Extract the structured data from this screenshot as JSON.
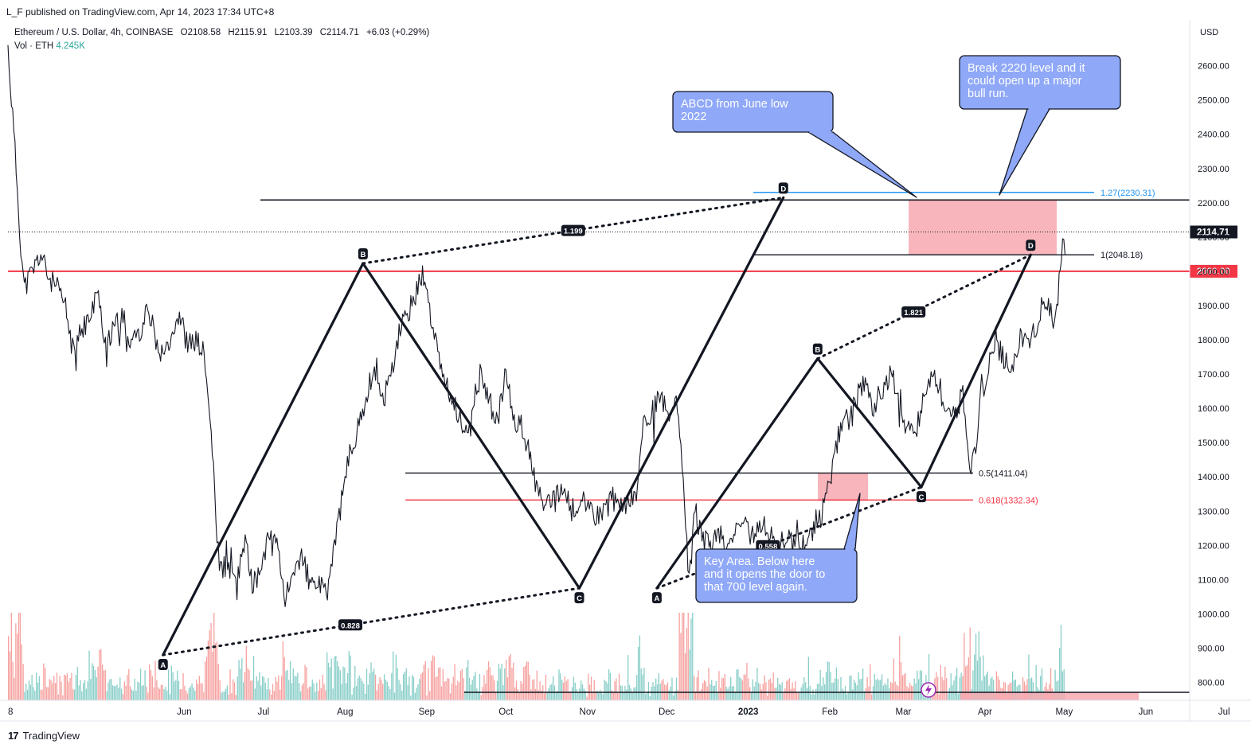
{
  "publisher_line": "L_F published on TradingView.com, Apr 14, 2023 17:34 UTC+8",
  "footer_brand": "TradingView",
  "footer_logo": "17",
  "colors": {
    "accent_red": "#f23645",
    "accent_blue": "#2962ff",
    "fib_blue": "#2196f3",
    "note_blue": "#8fa8f7",
    "zone_pink": "#f7a9b0",
    "bull": "#26a69a",
    "bear": "#ef5350"
  },
  "legend": {
    "symbol": "Ethereum / U.S. Dollar, 4h, COINBASE",
    "open": "O2108.58",
    "high": "H2115.91",
    "low": "L2103.39",
    "close": "C2114.71",
    "change": "+6.03 (+0.29%)",
    "vol_label": "Vol · ETH",
    "vol_value": "4.245K"
  },
  "chart_data": {
    "type": "line",
    "title": "Ethereum / U.S. Dollar, 4h, COINBASE",
    "ylabel": "USD",
    "ylim": [
      740,
      2740
    ],
    "y_ticks": [
      800,
      900,
      1000,
      1100,
      1200,
      1300,
      1400,
      1500,
      1600,
      1700,
      1800,
      1900,
      2000,
      2100,
      2200,
      2300,
      2400,
      2500,
      2600
    ],
    "y_tick_labels": [
      "800.00",
      "900.00",
      "1000.00",
      "1100.00",
      "1200.00",
      "1300.00",
      "1400.00",
      "1500.00",
      "1600.00",
      "1700.00",
      "1800.00",
      "1900.00",
      "2000.00",
      "2100.00",
      "2200.00",
      "2300.00",
      "2400.00",
      "2500.00",
      "2600.00"
    ],
    "x_ticks": [
      {
        "label": "8",
        "t": 0
      },
      {
        "label": "Jun",
        "t": 2.16
      },
      {
        "label": "Jul",
        "t": 3.13
      },
      {
        "label": "Aug",
        "t": 4.13
      },
      {
        "label": "Sep",
        "t": 5.13
      },
      {
        "label": "Oct",
        "t": 6.1
      },
      {
        "label": "Nov",
        "t": 7.1
      },
      {
        "label": "Dec",
        "t": 8.07
      },
      {
        "label": "2023",
        "t": 9.07
      },
      {
        "label": "Feb",
        "t": 10.07
      },
      {
        "label": "Mar",
        "t": 10.97
      },
      {
        "label": "Apr",
        "t": 11.97
      },
      {
        "label": "May",
        "t": 12.94
      },
      {
        "label": "Jun",
        "t": 13.94
      },
      {
        "label": "Jul",
        "t": 14.9
      }
    ],
    "x_unit": "months since mid-May 2022",
    "price_series": [
      [
        0,
        2650
      ],
      [
        0.05,
        2480
      ],
      [
        0.1,
        2300
      ],
      [
        0.15,
        2100
      ],
      [
        0.2,
        1950
      ],
      [
        0.3,
        2000
      ],
      [
        0.4,
        2050
      ],
      [
        0.5,
        1980
      ],
      [
        0.6,
        1950
      ],
      [
        0.7,
        1900
      ],
      [
        0.8,
        1760
      ],
      [
        0.9,
        1830
      ],
      [
        1.0,
        1860
      ],
      [
        1.1,
        1940
      ],
      [
        1.2,
        1780
      ],
      [
        1.3,
        1830
      ],
      [
        1.4,
        1870
      ],
      [
        1.5,
        1800
      ],
      [
        1.6,
        1820
      ],
      [
        1.7,
        1880
      ],
      [
        1.8,
        1800
      ],
      [
        1.9,
        1760
      ],
      [
        2.0,
        1820
      ],
      [
        2.1,
        1880
      ],
      [
        2.2,
        1780
      ],
      [
        2.3,
        1800
      ],
      [
        2.4,
        1760
      ],
      [
        2.5,
        1500
      ],
      [
        2.55,
        1250
      ],
      [
        2.6,
        1130
      ],
      [
        2.7,
        1150
      ],
      [
        2.8,
        1080
      ],
      [
        2.9,
        1220
      ],
      [
        3.0,
        1080
      ],
      [
        3.1,
        1130
      ],
      [
        3.2,
        1250
      ],
      [
        3.3,
        1220
      ],
      [
        3.4,
        1040
      ],
      [
        3.5,
        1100
      ],
      [
        3.6,
        1180
      ],
      [
        3.7,
        1080
      ],
      [
        3.8,
        1090
      ],
      [
        3.9,
        1050
      ],
      [
        4.0,
        1200
      ],
      [
        4.1,
        1350
      ],
      [
        4.2,
        1480
      ],
      [
        4.3,
        1550
      ],
      [
        4.4,
        1650
      ],
      [
        4.5,
        1720
      ],
      [
        4.6,
        1620
      ],
      [
        4.7,
        1700
      ],
      [
        4.8,
        1820
      ],
      [
        4.9,
        1880
      ],
      [
        5.0,
        1930
      ],
      [
        5.05,
        2000
      ],
      [
        5.1,
        1970
      ],
      [
        5.2,
        1850
      ],
      [
        5.3,
        1720
      ],
      [
        5.4,
        1640
      ],
      [
        5.5,
        1600
      ],
      [
        5.6,
        1520
      ],
      [
        5.7,
        1620
      ],
      [
        5.8,
        1700
      ],
      [
        5.9,
        1620
      ],
      [
        6.0,
        1560
      ],
      [
        6.1,
        1700
      ],
      [
        6.2,
        1560
      ],
      [
        6.3,
        1550
      ],
      [
        6.4,
        1450
      ],
      [
        6.5,
        1350
      ],
      [
        6.6,
        1310
      ],
      [
        6.7,
        1330
      ],
      [
        6.8,
        1370
      ],
      [
        6.9,
        1300
      ],
      [
        7.0,
        1320
      ],
      [
        7.1,
        1330
      ],
      [
        7.2,
        1290
      ],
      [
        7.3,
        1290
      ],
      [
        7.4,
        1340
      ],
      [
        7.5,
        1300
      ],
      [
        7.6,
        1330
      ],
      [
        7.7,
        1350
      ],
      [
        7.8,
        1580
      ],
      [
        7.9,
        1590
      ],
      [
        8.0,
        1640
      ],
      [
        8.1,
        1560
      ],
      [
        8.2,
        1620
      ],
      [
        8.3,
        1270
      ],
      [
        8.35,
        1090
      ],
      [
        8.4,
        1300
      ],
      [
        8.5,
        1230
      ],
      [
        8.6,
        1190
      ],
      [
        8.7,
        1250
      ],
      [
        8.8,
        1190
      ],
      [
        8.9,
        1220
      ],
      [
        9.0,
        1280
      ],
      [
        9.1,
        1210
      ],
      [
        9.2,
        1270
      ],
      [
        9.3,
        1250
      ],
      [
        9.4,
        1200
      ],
      [
        9.5,
        1220
      ],
      [
        9.6,
        1210
      ],
      [
        9.7,
        1200
      ],
      [
        9.8,
        1230
      ],
      [
        9.9,
        1250
      ],
      [
        10.0,
        1320
      ],
      [
        10.1,
        1420
      ],
      [
        10.2,
        1550
      ],
      [
        10.3,
        1570
      ],
      [
        10.4,
        1630
      ],
      [
        10.5,
        1680
      ],
      [
        10.6,
        1600
      ],
      [
        10.7,
        1650
      ],
      [
        10.8,
        1700
      ],
      [
        10.9,
        1660
      ],
      [
        11.0,
        1550
      ],
      [
        11.1,
        1520
      ],
      [
        11.2,
        1600
      ],
      [
        11.3,
        1700
      ],
      [
        11.4,
        1670
      ],
      [
        11.5,
        1560
      ],
      [
        11.6,
        1590
      ],
      [
        11.7,
        1640
      ],
      [
        11.75,
        1530
      ],
      [
        11.8,
        1420
      ],
      [
        11.85,
        1470
      ],
      [
        11.9,
        1600
      ],
      [
        12.0,
        1720
      ],
      [
        12.1,
        1790
      ],
      [
        12.2,
        1750
      ],
      [
        12.3,
        1720
      ],
      [
        12.4,
        1800
      ],
      [
        12.5,
        1780
      ],
      [
        12.6,
        1840
      ],
      [
        12.7,
        1920
      ],
      [
        12.8,
        1870
      ],
      [
        12.85,
        1910
      ],
      [
        12.9,
        2000
      ],
      [
        12.93,
        2100
      ],
      [
        12.95,
        2115
      ]
    ],
    "volume_description": "4h volume bars along the bottom of the pane, green = up bar, red = down bar",
    "harmonic_pattern_1": {
      "points": [
        {
          "label": "A",
          "t": 1.9,
          "price": 880
        },
        {
          "label": "B",
          "t": 4.35,
          "price": 2023
        },
        {
          "label": "C",
          "t": 7.0,
          "price": 1075
        },
        {
          "label": "D",
          "t": 9.5,
          "price": 2215
        }
      ],
      "ratios": [
        {
          "label": "0.828",
          "from": "A",
          "to": "C"
        },
        {
          "label": "1.199",
          "from": "B",
          "to": "D"
        }
      ]
    },
    "harmonic_pattern_2": {
      "points": [
        {
          "label": "A",
          "t": 7.95,
          "price": 1075
        },
        {
          "label": "B",
          "t": 9.92,
          "price": 1745
        },
        {
          "label": "C",
          "t": 11.19,
          "price": 1370
        },
        {
          "label": "D",
          "t": 12.53,
          "price": 2048
        }
      ],
      "ratios": [
        {
          "label": "0.558",
          "from": "A",
          "to": "C"
        },
        {
          "label": "1.821",
          "from": "B",
          "to": "D"
        }
      ]
    },
    "levels": [
      {
        "price": 2208,
        "label": "",
        "color": "#131722"
      },
      {
        "price": 2230.31,
        "label": "1.27(2230.31)",
        "color": "#2196f3"
      },
      {
        "price": 2048.18,
        "label": "1(2048.18)",
        "color": "#131722"
      },
      {
        "price": 2000,
        "label": "2000.00",
        "color": "#f23645"
      },
      {
        "price": 1411.04,
        "label": "0.5(1411.04)",
        "color": "#131722"
      },
      {
        "price": 1332.34,
        "label": "0.618(1332.34)",
        "color": "#f23645"
      }
    ],
    "zones": [
      {
        "name": "target-zone",
        "price_range": [
          2048,
          2210
        ]
      },
      {
        "name": "key-zone",
        "price_range": [
          1330,
          1410
        ]
      }
    ],
    "current_price_label": "2114.71",
    "level_2000_label": "2000.00",
    "annotations": [
      "ABCD from June low 2022",
      "Break 2220 level and it could open up a major bull run.",
      "Key Area. Below here and it opens the door to that 700 level again."
    ]
  }
}
